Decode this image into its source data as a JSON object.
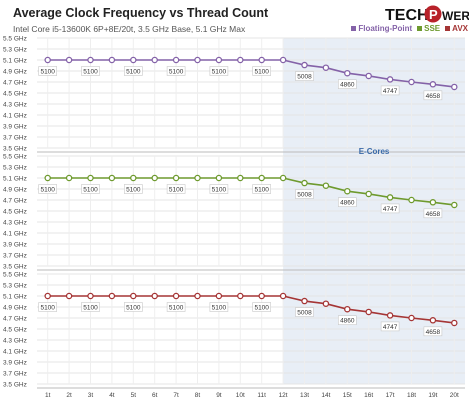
{
  "header": {
    "title": "Average Clock Frequency vs Thread Count",
    "subtitle": "Intel Core i5-13600K 6P+8E/20t, 3.5 GHz Base, 5.1 GHz Max",
    "logo": {
      "part1": "TECH",
      "part2": "P",
      "part3": "WERUP"
    }
  },
  "colors": {
    "Floating-Point": "#8462a8",
    "SSE": "#6e9a2e",
    "AVX": "#a53535",
    "ecore_band": "#e8eef6",
    "grid": "#e4e4e4",
    "label_box_border": "#c8c8c8",
    "ecore_label": "#3a6aa8"
  },
  "chart_data": {
    "type": "line",
    "title": "Average Clock Frequency vs Thread Count",
    "subtitle": "Intel Core i5-13600K 6P+8E/20t, 3.5 GHz Base, 5.1 GHz Max",
    "x": [
      "1t",
      "2t",
      "3t",
      "4t",
      "5t",
      "6t",
      "7t",
      "8t",
      "9t",
      "10t",
      "11t",
      "12t",
      "13t",
      "14t",
      "15t",
      "16t",
      "17t",
      "18t",
      "19t",
      "20t"
    ],
    "y_ticks": [
      "5.5 GHz",
      "5.3 GHz",
      "5.1 GHz",
      "4.9 GHz",
      "4.7 GHz",
      "4.5 GHz",
      "4.3 GHz",
      "4.1 GHz",
      "3.9 GHz",
      "3.7 GHz",
      "3.5 GHz"
    ],
    "ylim": [
      3.5,
      5.5
    ],
    "y_unit": "GHz",
    "grid": true,
    "legend": {
      "placement": "top-right",
      "entries": [
        "Floating-Point",
        "SSE",
        "AVX"
      ]
    },
    "shaded_region": {
      "label": "E-Cores",
      "from": "12t",
      "to": "20t"
    },
    "series": [
      {
        "name": "Floating-Point",
        "values": [
          5.1,
          5.1,
          5.1,
          5.1,
          5.1,
          5.1,
          5.1,
          5.1,
          5.1,
          5.1,
          5.1,
          5.1,
          5.008,
          4.96,
          4.86,
          4.81,
          4.747,
          4.7,
          4.658,
          4.61
        ],
        "labels": {
          "0": "5100",
          "2": "5100",
          "4": "5100",
          "6": "5100",
          "8": "5100",
          "10": "5100",
          "12": "5008",
          "14": "4860",
          "16": "4747",
          "18": "4658"
        }
      },
      {
        "name": "SSE",
        "values": [
          5.1,
          5.1,
          5.1,
          5.1,
          5.1,
          5.1,
          5.1,
          5.1,
          5.1,
          5.1,
          5.1,
          5.1,
          5.008,
          4.96,
          4.86,
          4.81,
          4.747,
          4.7,
          4.658,
          4.61
        ],
        "labels": {
          "0": "5100",
          "2": "5100",
          "4": "5100",
          "6": "5100",
          "8": "5100",
          "10": "5100",
          "12": "5008",
          "14": "4860",
          "16": "4747",
          "18": "4658"
        }
      },
      {
        "name": "AVX",
        "values": [
          5.1,
          5.1,
          5.1,
          5.1,
          5.1,
          5.1,
          5.1,
          5.1,
          5.1,
          5.1,
          5.1,
          5.1,
          5.008,
          4.96,
          4.86,
          4.81,
          4.747,
          4.7,
          4.658,
          4.61
        ],
        "labels": {
          "0": "5100",
          "2": "5100",
          "4": "5100",
          "6": "5100",
          "8": "5100",
          "10": "5100",
          "12": "5008",
          "14": "4860",
          "16": "4747",
          "18": "4658"
        }
      }
    ]
  }
}
